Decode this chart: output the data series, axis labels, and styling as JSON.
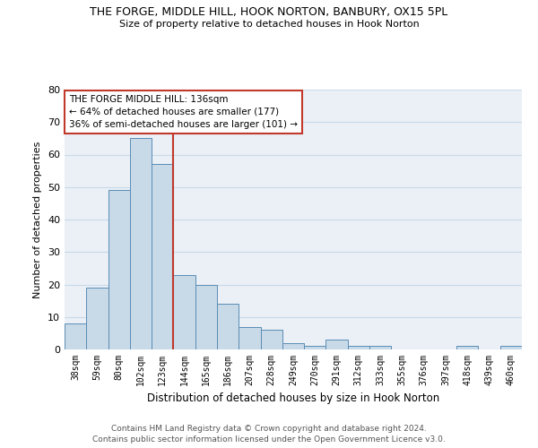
{
  "title_line1": "THE FORGE, MIDDLE HILL, HOOK NORTON, BANBURY, OX15 5PL",
  "title_line2": "Size of property relative to detached houses in Hook Norton",
  "xlabel": "Distribution of detached houses by size in Hook Norton",
  "ylabel": "Number of detached properties",
  "footer_line1": "Contains HM Land Registry data © Crown copyright and database right 2024.",
  "footer_line2": "Contains public sector information licensed under the Open Government Licence v3.0.",
  "categories": [
    "38sqm",
    "59sqm",
    "80sqm",
    "102sqm",
    "123sqm",
    "144sqm",
    "165sqm",
    "186sqm",
    "207sqm",
    "228sqm",
    "249sqm",
    "270sqm",
    "291sqm",
    "312sqm",
    "333sqm",
    "355sqm",
    "376sqm",
    "397sqm",
    "418sqm",
    "439sqm",
    "460sqm"
  ],
  "values": [
    8,
    19,
    49,
    65,
    57,
    23,
    20,
    14,
    7,
    6,
    2,
    1,
    3,
    1,
    1,
    0,
    0,
    0,
    1,
    0,
    1
  ],
  "bar_color": "#c8d9e8",
  "bar_edge_color": "#5a8db5",
  "vline_color": "#c0392b",
  "annotation_title": "THE FORGE MIDDLE HILL: 136sqm",
  "annotation_line1": "← 64% of detached houses are smaller (177)",
  "annotation_line2": "36% of semi-detached houses are larger (101) →",
  "annotation_box_color": "#c0392b",
  "ylim": [
    0,
    80
  ],
  "yticks": [
    0,
    10,
    20,
    30,
    40,
    50,
    60,
    70,
    80
  ],
  "grid_color": "#c8d9e8",
  "background_color": "#eaf0f6"
}
